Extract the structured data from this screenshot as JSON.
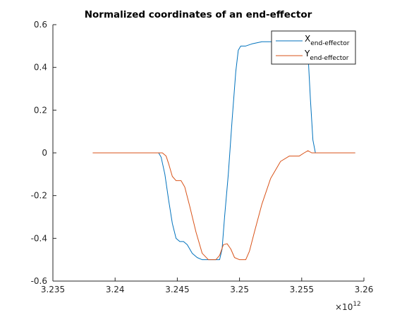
{
  "chart_data": {
    "type": "line",
    "title": "Normalized coordinates of an end-effector",
    "xlim": [
      3.235,
      3.26
    ],
    "ylim": [
      -0.6,
      0.6
    ],
    "x_exponent_label": "×10",
    "x_exponent_power": "12",
    "x_ticks": [
      "3.235",
      "3.24",
      "3.245",
      "3.25",
      "3.255",
      "3.26"
    ],
    "y_ticks": [
      "-0.6",
      "-0.4",
      "-0.2",
      "0",
      "0.2",
      "0.4",
      "0.6"
    ],
    "grid": false,
    "legend_placement": "top-right",
    "series": [
      {
        "name_main": "X",
        "name_sub": "end-effector",
        "color": "#0072BD",
        "points": [
          [
            3.2382,
            0.0
          ],
          [
            3.2435,
            0.0
          ],
          [
            3.2437,
            -0.02
          ],
          [
            3.244,
            -0.1
          ],
          [
            3.2443,
            -0.22
          ],
          [
            3.2446,
            -0.33
          ],
          [
            3.2449,
            -0.4
          ],
          [
            3.2452,
            -0.415
          ],
          [
            3.2455,
            -0.415
          ],
          [
            3.2458,
            -0.43
          ],
          [
            3.2462,
            -0.47
          ],
          [
            3.2466,
            -0.49
          ],
          [
            3.247,
            -0.5
          ],
          [
            3.2484,
            -0.5
          ],
          [
            3.2486,
            -0.45
          ],
          [
            3.2488,
            -0.3
          ],
          [
            3.2491,
            -0.1
          ],
          [
            3.2494,
            0.15
          ],
          [
            3.2497,
            0.38
          ],
          [
            3.2499,
            0.48
          ],
          [
            3.2501,
            0.5
          ],
          [
            3.2505,
            0.5
          ],
          [
            3.251,
            0.51
          ],
          [
            3.2518,
            0.52
          ],
          [
            3.2528,
            0.52
          ],
          [
            3.2537,
            0.52
          ],
          [
            3.2545,
            0.52
          ],
          [
            3.2552,
            0.52
          ],
          [
            3.2555,
            0.47
          ],
          [
            3.2557,
            0.25
          ],
          [
            3.2559,
            0.06
          ],
          [
            3.2561,
            0.0
          ],
          [
            3.2593,
            0.0
          ]
        ]
      },
      {
        "name_main": "Y",
        "name_sub": "end-effector",
        "color": "#D95319",
        "points": [
          [
            3.2382,
            0.0
          ],
          [
            3.2435,
            0.0
          ],
          [
            3.2438,
            0.0
          ],
          [
            3.2441,
            -0.015
          ],
          [
            3.2443,
            -0.05
          ],
          [
            3.2446,
            -0.11
          ],
          [
            3.2449,
            -0.13
          ],
          [
            3.2453,
            -0.13
          ],
          [
            3.2456,
            -0.16
          ],
          [
            3.246,
            -0.25
          ],
          [
            3.2465,
            -0.37
          ],
          [
            3.247,
            -0.47
          ],
          [
            3.2475,
            -0.5
          ],
          [
            3.2481,
            -0.5
          ],
          [
            3.2484,
            -0.48
          ],
          [
            3.2487,
            -0.43
          ],
          [
            3.249,
            -0.425
          ],
          [
            3.2493,
            -0.45
          ],
          [
            3.2496,
            -0.49
          ],
          [
            3.25,
            -0.5
          ],
          [
            3.2505,
            -0.5
          ],
          [
            3.2508,
            -0.46
          ],
          [
            3.2512,
            -0.37
          ],
          [
            3.2518,
            -0.24
          ],
          [
            3.2525,
            -0.12
          ],
          [
            3.2533,
            -0.04
          ],
          [
            3.254,
            -0.015
          ],
          [
            3.2548,
            -0.015
          ],
          [
            3.2552,
            0.0
          ],
          [
            3.2555,
            0.01
          ],
          [
            3.2558,
            0.0
          ],
          [
            3.2593,
            0.0
          ]
        ]
      }
    ]
  }
}
